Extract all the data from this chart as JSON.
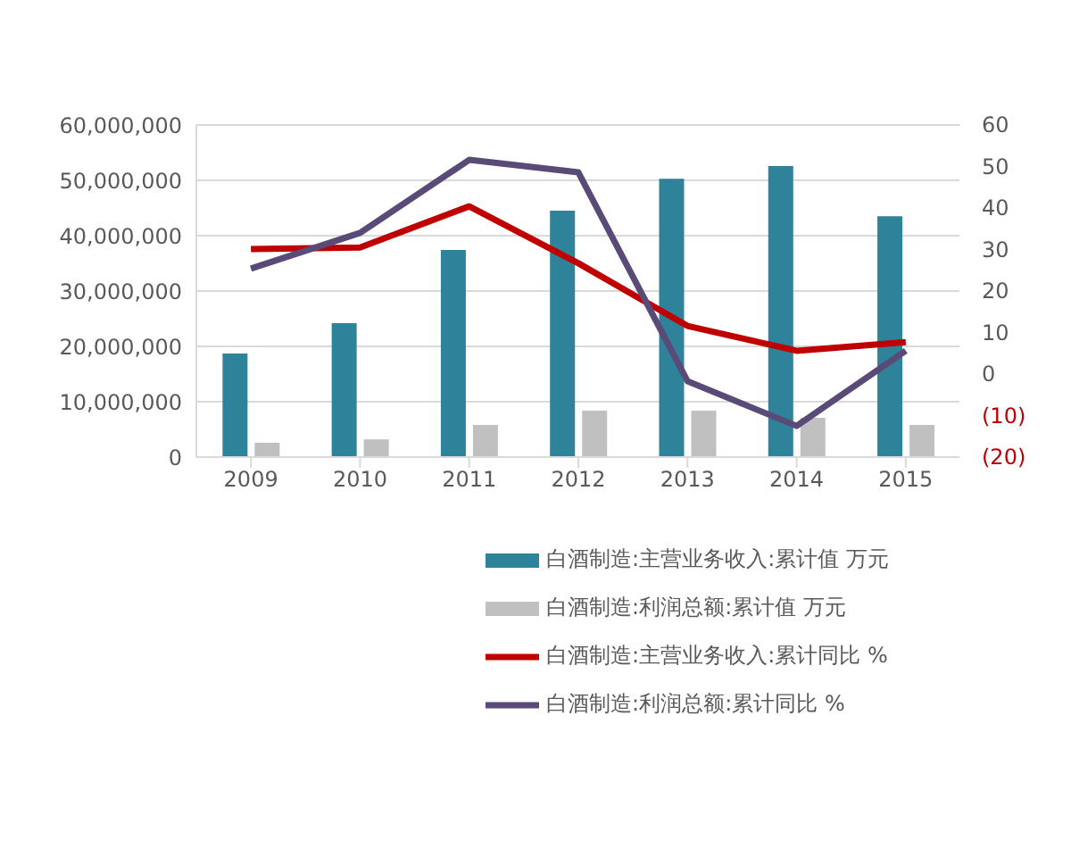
{
  "chart_data": {
    "type": "bar",
    "categories": [
      "2009",
      "2010",
      "2011",
      "2012",
      "2013",
      "2014",
      "2015"
    ],
    "series": [
      {
        "name": "白酒制造:主营业务收入:累计值 万元",
        "color": "#2e8299",
        "values": [
          18700000,
          24200000,
          37400000,
          44500000,
          50300000,
          52600000,
          43500000
        ]
      },
      {
        "name": "白酒制造:利润总额:累计值 万元",
        "color": "#c0c0c0",
        "values": [
          2600000,
          3200000,
          5800000,
          8400000,
          8400000,
          7100000,
          5800000
        ]
      },
      {
        "name": "白酒制造:主营业务收入:累计同比 %",
        "type": "line",
        "axis": "y2",
        "color": "#c00000",
        "values": [
          30.1,
          30.5,
          40.4,
          26.7,
          11.6,
          5.6,
          7.7
        ]
      },
      {
        "name": "白酒制造:利润总额:累计同比 %",
        "type": "line",
        "axis": "y2",
        "color": "#5a4a78",
        "values": [
          25.4,
          34,
          51.6,
          48.6,
          -1.7,
          -12.5,
          5.6
        ]
      }
    ],
    "ylim": [
      0,
      60000000
    ],
    "yticks": [
      {
        "value": 0,
        "label": "0"
      },
      {
        "value": 10000000,
        "label": "10,000,000"
      },
      {
        "value": 20000000,
        "label": "20,000,000"
      },
      {
        "value": 30000000,
        "label": "30,000,000"
      },
      {
        "value": 40000000,
        "label": "40,000,000"
      },
      {
        "value": 50000000,
        "label": "50,000,000"
      },
      {
        "value": 60000000,
        "label": "60,000,000"
      }
    ],
    "y2lim": [
      -20,
      60
    ],
    "y2ticks": [
      {
        "value": -20,
        "label": "(20)"
      },
      {
        "value": -10,
        "label": "(10)"
      },
      0,
      10,
      20,
      30,
      40,
      50,
      60
    ],
    "grid": "y",
    "legend": "bottom",
    "marker": "none",
    "line_style": "solid"
  }
}
